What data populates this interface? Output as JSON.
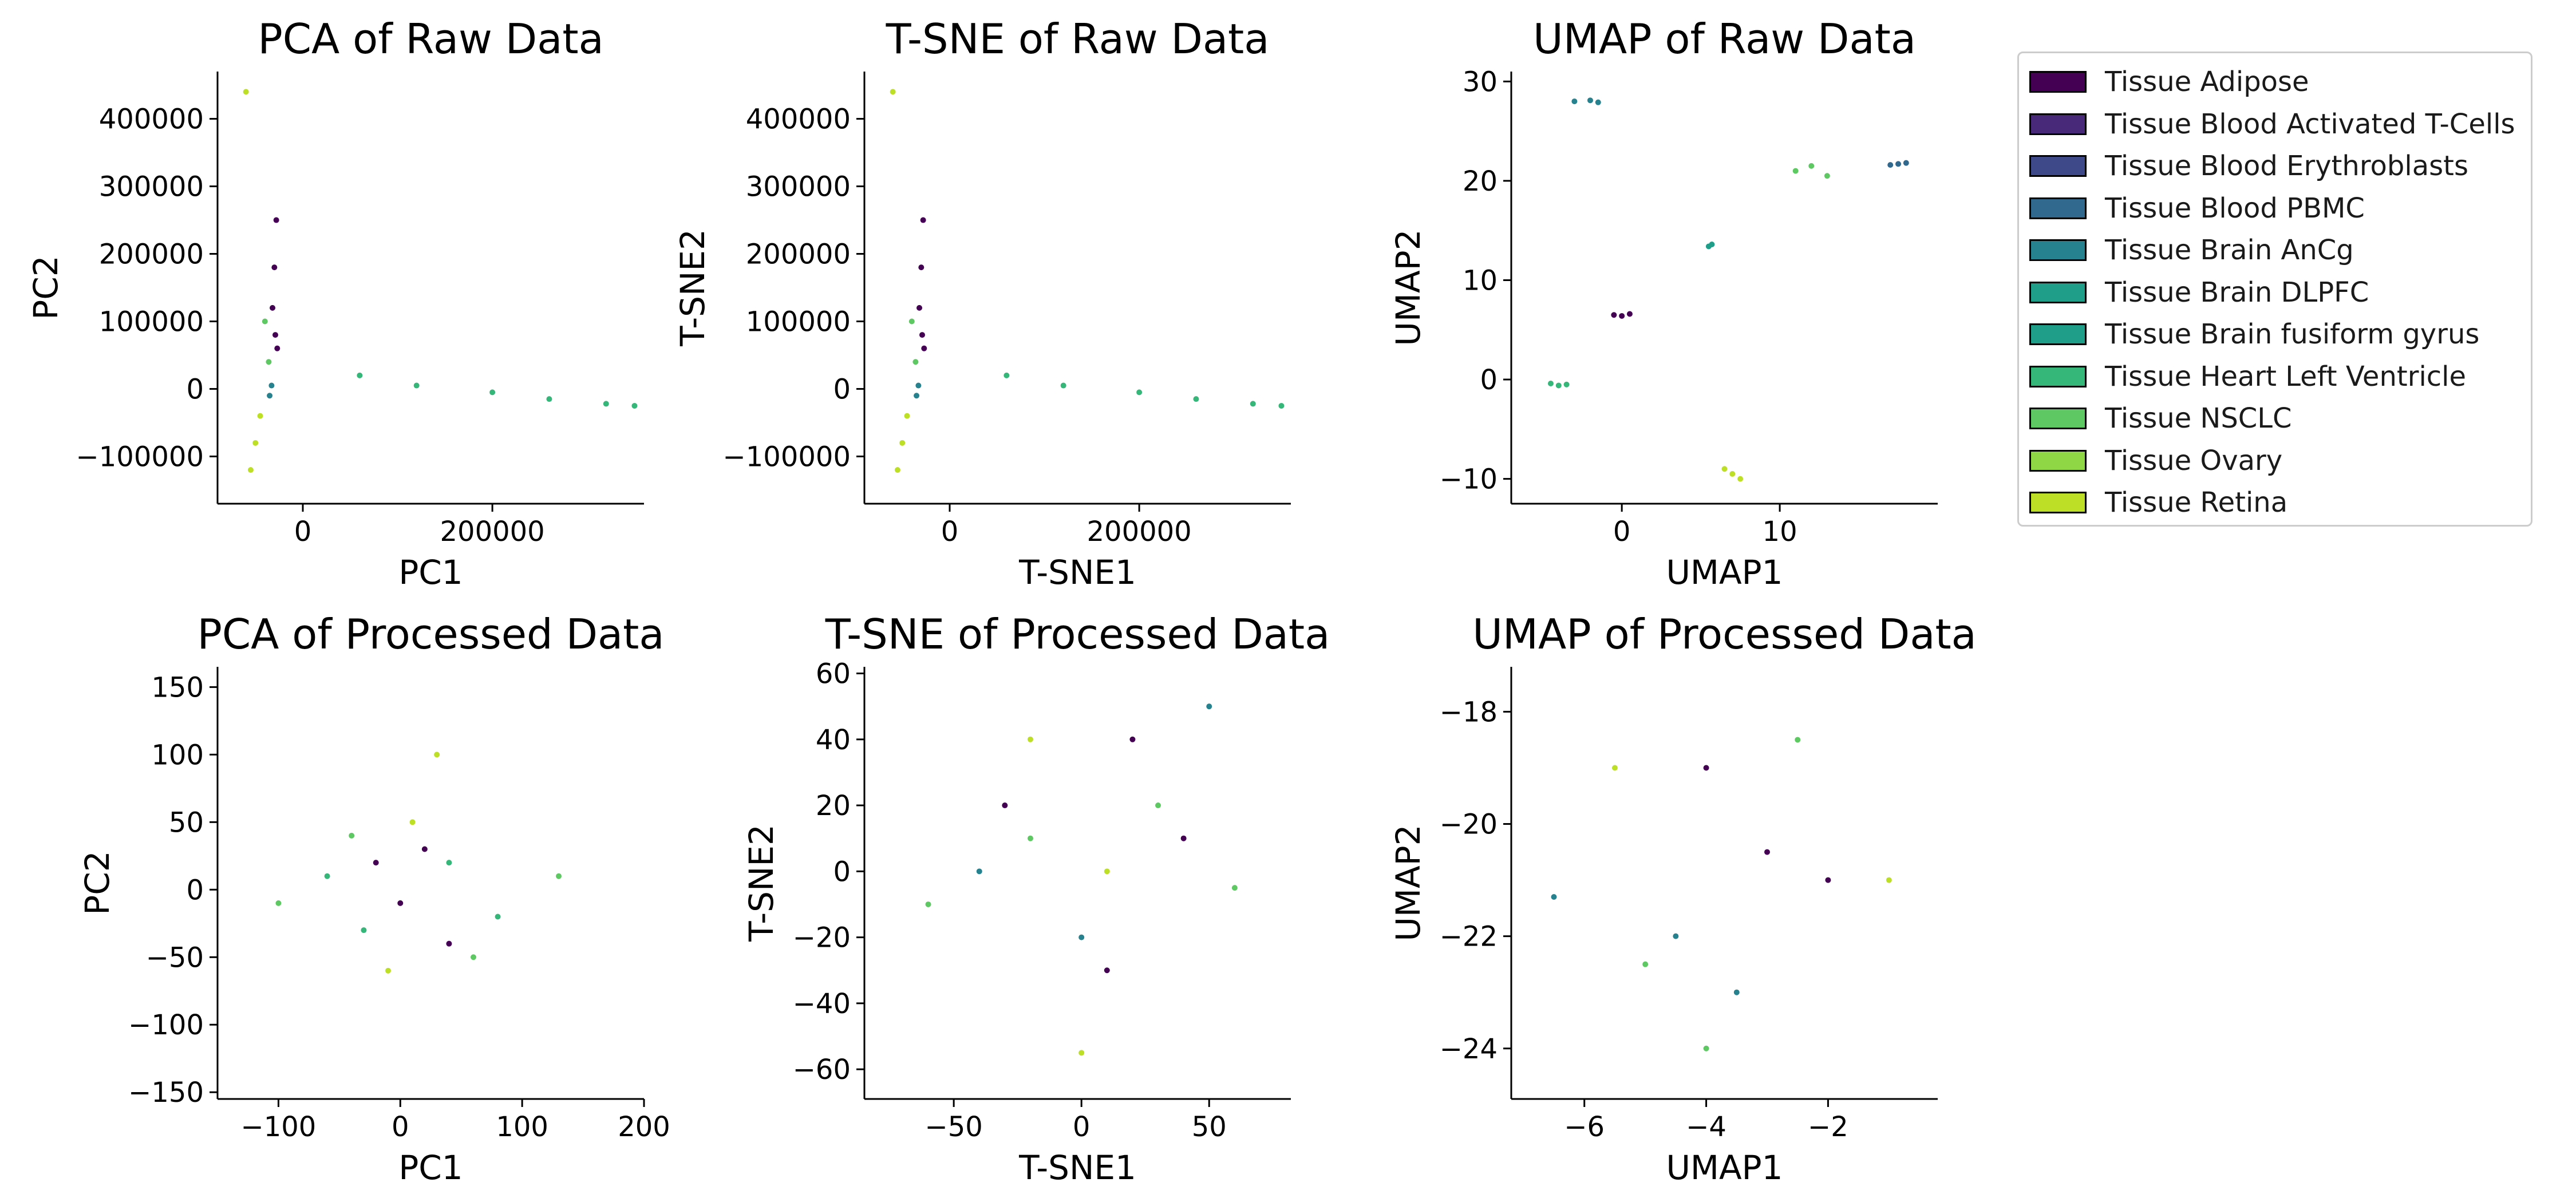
{
  "chart_data": [
    {
      "type": "scatter",
      "title": "PCA of Raw Data",
      "xlabel": "PC1",
      "ylabel": "PC2",
      "xlim": [
        -90000,
        360000
      ],
      "ylim": [
        -170000,
        470000
      ],
      "xticks": [
        0,
        200000
      ],
      "yticks": [
        -100000,
        0,
        100000,
        200000,
        300000,
        400000
      ],
      "series": [
        {
          "name": "Tissue Adipose",
          "x": [
            -28000,
            -30000,
            -32000,
            -29000,
            -27000
          ],
          "y": [
            250000,
            180000,
            120000,
            80000,
            60000
          ]
        },
        {
          "name": "Tissue Brain  AnCg",
          "x": [
            -35000,
            -33000
          ],
          "y": [
            -10000,
            5000
          ]
        },
        {
          "name": "Tissue Heart Left Ventricle",
          "x": [
            60000,
            120000,
            200000,
            260000,
            320000,
            350000
          ],
          "y": [
            20000,
            5000,
            -5000,
            -15000,
            -22000,
            -25000
          ]
        },
        {
          "name": "Tissue NSCLC",
          "x": [
            -40000,
            -36000
          ],
          "y": [
            100000,
            40000
          ]
        },
        {
          "name": "Tissue Retina",
          "x": [
            -55000,
            -50000,
            -45000,
            -60000
          ],
          "y": [
            -120000,
            -80000,
            -40000,
            440000
          ]
        }
      ]
    },
    {
      "type": "scatter",
      "title": "T-SNE of Raw Data",
      "xlabel": "T-SNE1",
      "ylabel": "T-SNE2",
      "xlim": [
        -90000,
        360000
      ],
      "ylim": [
        -170000,
        470000
      ],
      "xticks": [
        0,
        200000
      ],
      "yticks": [
        -100000,
        0,
        100000,
        200000,
        300000,
        400000
      ],
      "series": [
        {
          "name": "Tissue Adipose",
          "x": [
            -28000,
            -30000,
            -32000,
            -29000,
            -27000
          ],
          "y": [
            250000,
            180000,
            120000,
            80000,
            60000
          ]
        },
        {
          "name": "Tissue Brain  AnCg",
          "x": [
            -35000,
            -33000
          ],
          "y": [
            -10000,
            5000
          ]
        },
        {
          "name": "Tissue Heart Left Ventricle",
          "x": [
            60000,
            120000,
            200000,
            260000,
            320000,
            350000
          ],
          "y": [
            20000,
            5000,
            -5000,
            -15000,
            -22000,
            -25000
          ]
        },
        {
          "name": "Tissue NSCLC",
          "x": [
            -40000,
            -36000
          ],
          "y": [
            100000,
            40000
          ]
        },
        {
          "name": "Tissue Retina",
          "x": [
            -55000,
            -50000,
            -45000,
            -60000
          ],
          "y": [
            -120000,
            -80000,
            -40000,
            440000
          ]
        }
      ]
    },
    {
      "type": "scatter",
      "title": "UMAP of Raw Data",
      "xlabel": "UMAP1",
      "ylabel": "UMAP2",
      "xlim": [
        -7,
        20
      ],
      "ylim": [
        -12.5,
        31
      ],
      "xticks": [
        0,
        10
      ],
      "yticks": [
        -10,
        0,
        10,
        20,
        30
      ],
      "series": [
        {
          "name": "Tissue Adipose",
          "x": [
            -0.5,
            0,
            0.5
          ],
          "y": [
            6.5,
            6.4,
            6.6
          ]
        },
        {
          "name": "Tissue Blood PBMC",
          "x": [
            17,
            17.5,
            18
          ],
          "y": [
            21.6,
            21.7,
            21.8
          ]
        },
        {
          "name": "Tissue Brain  AnCg",
          "x": [
            -3,
            -2,
            -1.5
          ],
          "y": [
            28,
            28.1,
            27.9
          ]
        },
        {
          "name": "Tissue Brain  DLPFC",
          "x": [
            5.5,
            5.7
          ],
          "y": [
            13.4,
            13.6
          ]
        },
        {
          "name": "Tissue Heart Left Ventricle",
          "x": [
            -4.5,
            -4,
            -3.5
          ],
          "y": [
            -0.4,
            -0.6,
            -0.5
          ]
        },
        {
          "name": "Tissue NSCLC",
          "x": [
            11,
            12,
            13
          ],
          "y": [
            21,
            21.5,
            20.5
          ]
        },
        {
          "name": "Tissue Retina",
          "x": [
            6.5,
            7,
            7.5
          ],
          "y": [
            -9,
            -9.5,
            -10
          ]
        }
      ]
    },
    {
      "type": "scatter",
      "title": "PCA of Processed Data",
      "xlabel": "PC1",
      "ylabel": "PC2",
      "xlim": [
        -150,
        200
      ],
      "ylim": [
        -155,
        165
      ],
      "xticks": [
        -100,
        0,
        100,
        200
      ],
      "yticks": [
        -150,
        -100,
        -50,
        0,
        50,
        100,
        150
      ],
      "series": [
        {
          "name": "Tissue Adipose",
          "x": [
            -20,
            0,
            20,
            40
          ],
          "y": [
            20,
            -10,
            30,
            -40
          ]
        },
        {
          "name": "Tissue Heart Left Ventricle",
          "x": [
            -60,
            -30,
            40,
            80
          ],
          "y": [
            10,
            -30,
            20,
            -20
          ]
        },
        {
          "name": "Tissue NSCLC",
          "x": [
            -100,
            -40,
            60,
            130
          ],
          "y": [
            -10,
            40,
            -50,
            10
          ]
        },
        {
          "name": "Tissue Retina",
          "x": [
            -10,
            10,
            30
          ],
          "y": [
            -60,
            50,
            100
          ]
        }
      ]
    },
    {
      "type": "scatter",
      "title": "T-SNE of Processed Data",
      "xlabel": "T-SNE1",
      "ylabel": "T-SNE2",
      "xlim": [
        -85,
        82
      ],
      "ylim": [
        -69,
        62
      ],
      "xticks": [
        -50,
        0,
        50
      ],
      "yticks": [
        -60,
        -40,
        -20,
        0,
        20,
        40,
        60
      ],
      "series": [
        {
          "name": "Tissue Adipose",
          "x": [
            -30,
            10,
            20,
            40
          ],
          "y": [
            20,
            -30,
            40,
            10
          ]
        },
        {
          "name": "Tissue Brain  AnCg",
          "x": [
            -40,
            0,
            50
          ],
          "y": [
            0,
            -20,
            50
          ]
        },
        {
          "name": "Tissue NSCLC",
          "x": [
            -60,
            -20,
            30,
            60
          ],
          "y": [
            -10,
            10,
            20,
            -5
          ]
        },
        {
          "name": "Tissue Retina",
          "x": [
            -20,
            0,
            10
          ],
          "y": [
            40,
            -55,
            0
          ]
        }
      ]
    },
    {
      "type": "scatter",
      "title": "UMAP of Processed Data",
      "xlabel": "UMAP1",
      "ylabel": "UMAP2",
      "xlim": [
        -7.2,
        -0.2
      ],
      "ylim": [
        -24.9,
        -17.2
      ],
      "xticks": [
        -6,
        -4,
        -2
      ],
      "yticks": [
        -24,
        -22,
        -20,
        -18
      ],
      "series": [
        {
          "name": "Tissue Adipose",
          "x": [
            -4,
            -3,
            -2
          ],
          "y": [
            -19,
            -20.5,
            -21
          ]
        },
        {
          "name": "Tissue Brain  AnCg",
          "x": [
            -6.5,
            -4.5,
            -3.5
          ],
          "y": [
            -21.3,
            -22,
            -23
          ]
        },
        {
          "name": "Tissue NSCLC",
          "x": [
            -5,
            -4,
            -2.5
          ],
          "y": [
            -22.5,
            -24,
            -18.5
          ]
        },
        {
          "name": "Tissue Retina",
          "x": [
            -5.5,
            -1
          ],
          "y": [
            -19,
            -21
          ]
        }
      ]
    }
  ],
  "legend": {
    "entries": [
      {
        "label": "Tissue Adipose",
        "color": "#440154"
      },
      {
        "label": "Tissue Blood Activated T-Cells",
        "color": "#482878"
      },
      {
        "label": "Tissue Blood Erythroblasts",
        "color": "#3e4989"
      },
      {
        "label": "Tissue Blood PBMC",
        "color": "#31688e"
      },
      {
        "label": "Tissue Brain  AnCg",
        "color": "#26828e"
      },
      {
        "label": "Tissue Brain  DLPFC",
        "color": "#1f9e89"
      },
      {
        "label": "Tissue Brain  fusiform gyrus",
        "color": "#1f9e89"
      },
      {
        "label": "Tissue Heart Left Ventricle",
        "color": "#35b779"
      },
      {
        "label": "Tissue NSCLC",
        "color": "#5ec962"
      },
      {
        "label": "Tissue Ovary",
        "color": "#8fd744"
      },
      {
        "label": "Tissue Retina",
        "color": "#bddf26"
      }
    ]
  }
}
